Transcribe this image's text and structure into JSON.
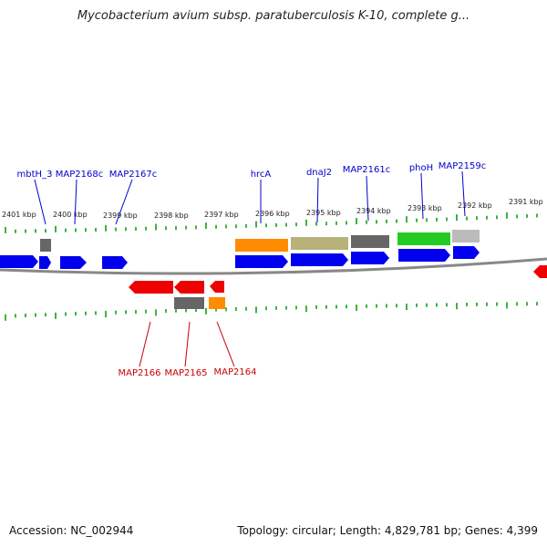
{
  "title": "Mycobacterium avium subsp. paratuberculosis K-10, complete g...",
  "footer": {
    "accession": "Accession: NC_002944",
    "topology": "Topology: circular; Length: 4,829,781 bp; Genes: 4,399"
  },
  "colors": {
    "forward_strand": "#0000ee",
    "reverse_strand": "#ee0000",
    "forward_label": "#0000cc",
    "reverse_label": "#cc0000",
    "tick": "#009900",
    "backbone": "#888888",
    "gray_feature": "#666666",
    "orange_feature": "#ff8c00",
    "olive_feature": "#b8b27a",
    "green_feature": "#22cc22",
    "light_gray_feature": "#bbbbbb"
  },
  "scale_labels": [
    "2401 kbp",
    "2400 kbp",
    "2399 kbp",
    "2398 kbp",
    "2397 kbp",
    "2396 kbp",
    "2395 kbp",
    "2394 kbp",
    "2393 kbp",
    "2392 kbp",
    "2391 kbp"
  ],
  "top_gene_labels": [
    "mbtH_3",
    "MAP2168c",
    "MAP2167c",
    "hrcA",
    "dnaJ2",
    "MAP2161c",
    "phoH",
    "MAP2159c"
  ],
  "bottom_gene_labels": [
    "MAP2166",
    "MAP2165",
    "MAP2164"
  ]
}
